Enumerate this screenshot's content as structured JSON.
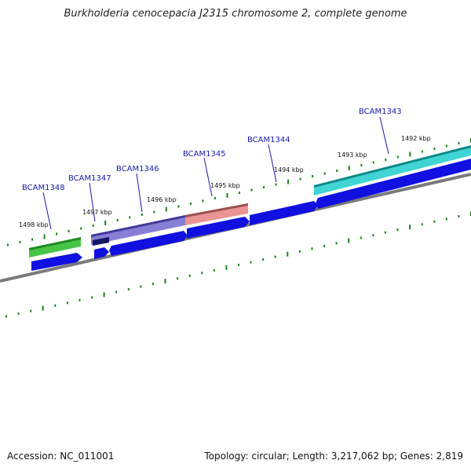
{
  "title": "Burkholderia cenocepacia J2315 chromosome 2, complete genome",
  "footer": {
    "accession": "Accession: NC_011001",
    "summary": "Topology: circular; Length: 3,217,062 bp; Genes: 2,819"
  },
  "colors": {
    "backbone": "#7a7a7a",
    "cds_blue": "#1010e0",
    "tick_green": "#1f7f1f",
    "gene_label_blue": "#1a1aa8",
    "feature_green": "#3cc23c",
    "feature_purple": "#7a70d0",
    "feature_navy": "#15156a",
    "feature_pink": "#e88888",
    "feature_cyan": "#20cccc"
  },
  "kbp_labels": [
    "1492 kbp",
    "1493 kbp",
    "1494 kbp",
    "1495 kbp",
    "1496 kbp",
    "1497 kbp",
    "1498 kbp"
  ],
  "gene_labels": [
    "BCAM1343",
    "BCAM1344",
    "BCAM1345",
    "BCAM1346",
    "BCAM1347",
    "BCAM1348"
  ]
}
